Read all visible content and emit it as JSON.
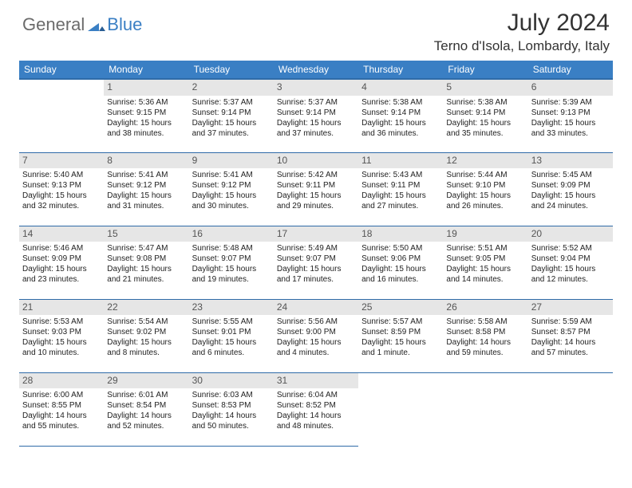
{
  "brand": {
    "general": "General",
    "blue": "Blue"
  },
  "title": "July 2024",
  "location": "Terno d'Isola, Lombardy, Italy",
  "colors": {
    "header_bg": "#3a7fc4",
    "header_border": "#2f6ba8",
    "daynum_bg": "#e6e6e6",
    "text": "#222222",
    "title_text": "#333333"
  },
  "daysOfWeek": [
    "Sunday",
    "Monday",
    "Tuesday",
    "Wednesday",
    "Thursday",
    "Friday",
    "Saturday"
  ],
  "weeks": [
    [
      null,
      {
        "n": "1",
        "sr": "Sunrise: 5:36 AM",
        "ss": "Sunset: 9:15 PM",
        "d1": "Daylight: 15 hours",
        "d2": "and 38 minutes."
      },
      {
        "n": "2",
        "sr": "Sunrise: 5:37 AM",
        "ss": "Sunset: 9:14 PM",
        "d1": "Daylight: 15 hours",
        "d2": "and 37 minutes."
      },
      {
        "n": "3",
        "sr": "Sunrise: 5:37 AM",
        "ss": "Sunset: 9:14 PM",
        "d1": "Daylight: 15 hours",
        "d2": "and 37 minutes."
      },
      {
        "n": "4",
        "sr": "Sunrise: 5:38 AM",
        "ss": "Sunset: 9:14 PM",
        "d1": "Daylight: 15 hours",
        "d2": "and 36 minutes."
      },
      {
        "n": "5",
        "sr": "Sunrise: 5:38 AM",
        "ss": "Sunset: 9:14 PM",
        "d1": "Daylight: 15 hours",
        "d2": "and 35 minutes."
      },
      {
        "n": "6",
        "sr": "Sunrise: 5:39 AM",
        "ss": "Sunset: 9:13 PM",
        "d1": "Daylight: 15 hours",
        "d2": "and 33 minutes."
      }
    ],
    [
      {
        "n": "7",
        "sr": "Sunrise: 5:40 AM",
        "ss": "Sunset: 9:13 PM",
        "d1": "Daylight: 15 hours",
        "d2": "and 32 minutes."
      },
      {
        "n": "8",
        "sr": "Sunrise: 5:41 AM",
        "ss": "Sunset: 9:12 PM",
        "d1": "Daylight: 15 hours",
        "d2": "and 31 minutes."
      },
      {
        "n": "9",
        "sr": "Sunrise: 5:41 AM",
        "ss": "Sunset: 9:12 PM",
        "d1": "Daylight: 15 hours",
        "d2": "and 30 minutes."
      },
      {
        "n": "10",
        "sr": "Sunrise: 5:42 AM",
        "ss": "Sunset: 9:11 PM",
        "d1": "Daylight: 15 hours",
        "d2": "and 29 minutes."
      },
      {
        "n": "11",
        "sr": "Sunrise: 5:43 AM",
        "ss": "Sunset: 9:11 PM",
        "d1": "Daylight: 15 hours",
        "d2": "and 27 minutes."
      },
      {
        "n": "12",
        "sr": "Sunrise: 5:44 AM",
        "ss": "Sunset: 9:10 PM",
        "d1": "Daylight: 15 hours",
        "d2": "and 26 minutes."
      },
      {
        "n": "13",
        "sr": "Sunrise: 5:45 AM",
        "ss": "Sunset: 9:09 PM",
        "d1": "Daylight: 15 hours",
        "d2": "and 24 minutes."
      }
    ],
    [
      {
        "n": "14",
        "sr": "Sunrise: 5:46 AM",
        "ss": "Sunset: 9:09 PM",
        "d1": "Daylight: 15 hours",
        "d2": "and 23 minutes."
      },
      {
        "n": "15",
        "sr": "Sunrise: 5:47 AM",
        "ss": "Sunset: 9:08 PM",
        "d1": "Daylight: 15 hours",
        "d2": "and 21 minutes."
      },
      {
        "n": "16",
        "sr": "Sunrise: 5:48 AM",
        "ss": "Sunset: 9:07 PM",
        "d1": "Daylight: 15 hours",
        "d2": "and 19 minutes."
      },
      {
        "n": "17",
        "sr": "Sunrise: 5:49 AM",
        "ss": "Sunset: 9:07 PM",
        "d1": "Daylight: 15 hours",
        "d2": "and 17 minutes."
      },
      {
        "n": "18",
        "sr": "Sunrise: 5:50 AM",
        "ss": "Sunset: 9:06 PM",
        "d1": "Daylight: 15 hours",
        "d2": "and 16 minutes."
      },
      {
        "n": "19",
        "sr": "Sunrise: 5:51 AM",
        "ss": "Sunset: 9:05 PM",
        "d1": "Daylight: 15 hours",
        "d2": "and 14 minutes."
      },
      {
        "n": "20",
        "sr": "Sunrise: 5:52 AM",
        "ss": "Sunset: 9:04 PM",
        "d1": "Daylight: 15 hours",
        "d2": "and 12 minutes."
      }
    ],
    [
      {
        "n": "21",
        "sr": "Sunrise: 5:53 AM",
        "ss": "Sunset: 9:03 PM",
        "d1": "Daylight: 15 hours",
        "d2": "and 10 minutes."
      },
      {
        "n": "22",
        "sr": "Sunrise: 5:54 AM",
        "ss": "Sunset: 9:02 PM",
        "d1": "Daylight: 15 hours",
        "d2": "and 8 minutes."
      },
      {
        "n": "23",
        "sr": "Sunrise: 5:55 AM",
        "ss": "Sunset: 9:01 PM",
        "d1": "Daylight: 15 hours",
        "d2": "and 6 minutes."
      },
      {
        "n": "24",
        "sr": "Sunrise: 5:56 AM",
        "ss": "Sunset: 9:00 PM",
        "d1": "Daylight: 15 hours",
        "d2": "and 4 minutes."
      },
      {
        "n": "25",
        "sr": "Sunrise: 5:57 AM",
        "ss": "Sunset: 8:59 PM",
        "d1": "Daylight: 15 hours",
        "d2": "and 1 minute."
      },
      {
        "n": "26",
        "sr": "Sunrise: 5:58 AM",
        "ss": "Sunset: 8:58 PM",
        "d1": "Daylight: 14 hours",
        "d2": "and 59 minutes."
      },
      {
        "n": "27",
        "sr": "Sunrise: 5:59 AM",
        "ss": "Sunset: 8:57 PM",
        "d1": "Daylight: 14 hours",
        "d2": "and 57 minutes."
      }
    ],
    [
      {
        "n": "28",
        "sr": "Sunrise: 6:00 AM",
        "ss": "Sunset: 8:55 PM",
        "d1": "Daylight: 14 hours",
        "d2": "and 55 minutes."
      },
      {
        "n": "29",
        "sr": "Sunrise: 6:01 AM",
        "ss": "Sunset: 8:54 PM",
        "d1": "Daylight: 14 hours",
        "d2": "and 52 minutes."
      },
      {
        "n": "30",
        "sr": "Sunrise: 6:03 AM",
        "ss": "Sunset: 8:53 PM",
        "d1": "Daylight: 14 hours",
        "d2": "and 50 minutes."
      },
      {
        "n": "31",
        "sr": "Sunrise: 6:04 AM",
        "ss": "Sunset: 8:52 PM",
        "d1": "Daylight: 14 hours",
        "d2": "and 48 minutes."
      },
      null,
      null,
      null
    ]
  ]
}
